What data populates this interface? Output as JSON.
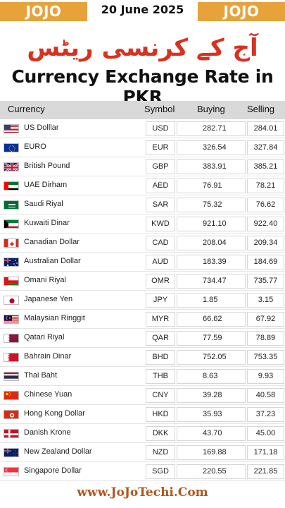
{
  "header": {
    "brand_left": "JOJO TECHI",
    "date": "20 June 2025",
    "brand_right": "JOJO TECHI",
    "brand_color": "#e8a23a"
  },
  "title_urdu": "آج کے کرنسی ریٹس",
  "title": "Currency Exchange Rate in PKR",
  "table": {
    "columns": [
      "Currency",
      "Symbol",
      "Buying",
      "Selling"
    ],
    "rows": [
      {
        "name": "US Dolllar",
        "symbol": "USD",
        "buying": "282.71",
        "selling": "284.01",
        "flag": "us-flag-icon"
      },
      {
        "name": "EURO",
        "symbol": "EUR",
        "buying": "326.54",
        "selling": "327.84",
        "flag": "eu-flag-icon"
      },
      {
        "name": "British Pound",
        "symbol": "GBP",
        "buying": "383.91",
        "selling": "385.21",
        "flag": "uk-flag-icon"
      },
      {
        "name": "UAE Dirham",
        "symbol": "AED",
        "buying": "76.91",
        "selling": "78.21",
        "flag": "uae-flag-icon"
      },
      {
        "name": "Saudi Riyal",
        "symbol": "SAR",
        "buying": "75.32",
        "selling": "76.62",
        "flag": "saudi-flag-icon"
      },
      {
        "name": "Kuwaiti Dinar",
        "symbol": "KWD",
        "buying": "921.10",
        "selling": "922.40",
        "flag": "kuwait-flag-icon"
      },
      {
        "name": "Canadian Dollar",
        "symbol": "CAD",
        "buying": "208.04",
        "selling": "209.34",
        "flag": "canada-flag-icon"
      },
      {
        "name": "Australian Dollar",
        "symbol": "AUD",
        "buying": "183.39",
        "selling": "184.69",
        "flag": "australia-flag-icon"
      },
      {
        "name": "Omani Riyal",
        "symbol": "OMR",
        "buying": "734.47",
        "selling": "735.77",
        "flag": "oman-flag-icon"
      },
      {
        "name": "Japanese Yen",
        "symbol": "JPY",
        "buying": "1.85",
        "selling": "3.15",
        "flag": "japan-flag-icon"
      },
      {
        "name": "Malaysian Ringgit",
        "symbol": "MYR",
        "buying": "66.62",
        "selling": "67.92",
        "flag": "malaysia-flag-icon"
      },
      {
        "name": "Qatari Riyal",
        "symbol": "QAR",
        "buying": "77.59",
        "selling": "78.89",
        "flag": "qatar-flag-icon"
      },
      {
        "name": "Bahrain Dinar",
        "symbol": "BHD",
        "buying": "752.05",
        "selling": "753.35",
        "flag": "bahrain-flag-icon"
      },
      {
        "name": "Thai Baht",
        "symbol": "THB",
        "buying": "8.63",
        "selling": "9.93",
        "flag": "thailand-flag-icon"
      },
      {
        "name": "Chinese Yuan",
        "symbol": "CNY",
        "buying": "39.28",
        "selling": "40.58",
        "flag": "china-flag-icon"
      },
      {
        "name": "Hong Kong Dollar",
        "symbol": "HKD",
        "buying": "35.93",
        "selling": "37.23",
        "flag": "hongkong-flag-icon"
      },
      {
        "name": "Danish Krone",
        "symbol": "DKK",
        "buying": "43.70",
        "selling": "45.00",
        "flag": "denmark-flag-icon"
      },
      {
        "name": "New Zealand Dollar",
        "symbol": "NZD",
        "buying": "169.88",
        "selling": "171.18",
        "flag": "newzealand-flag-icon"
      },
      {
        "name": "Singapore Dollar",
        "symbol": "SGD",
        "buying": "220.55",
        "selling": "221.85",
        "flag": "singapore-flag-icon"
      }
    ]
  },
  "footer": {
    "website": "www.JoJoTechi.Com",
    "color": "#b3561c"
  }
}
